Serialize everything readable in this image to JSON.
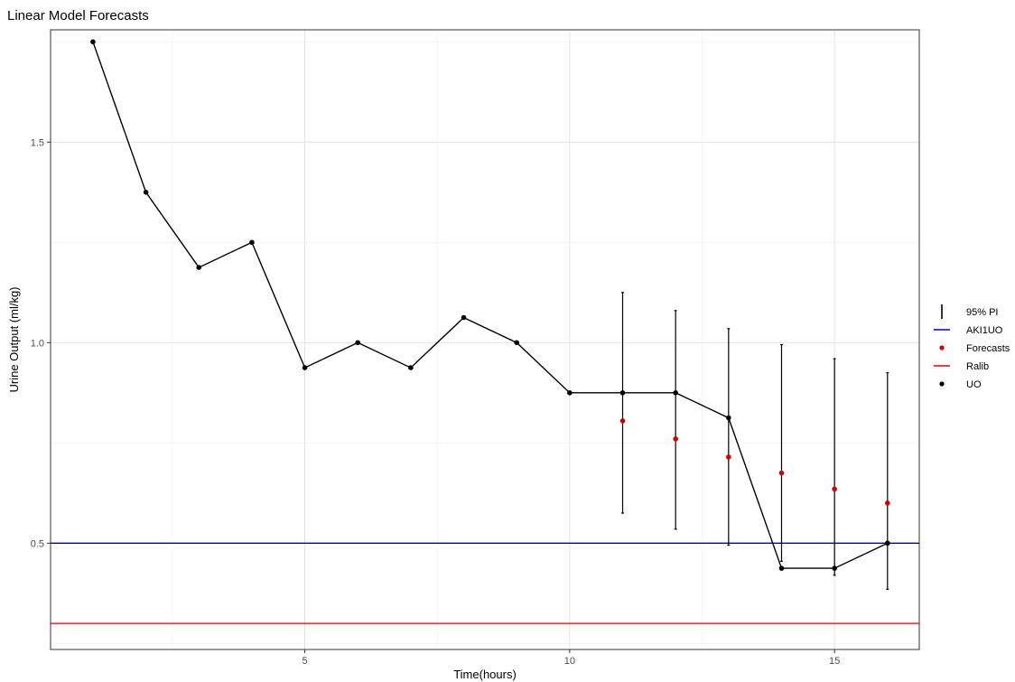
{
  "chart_data": {
    "type": "line",
    "title": "Linear Model Forecasts",
    "xlabel": "Time(hours)",
    "ylabel": "Urine Output (ml/kg)",
    "xlim": [
      0.2,
      16.6
    ],
    "ylim": [
      0.235,
      1.78
    ],
    "x_ticks": [
      5,
      10,
      15
    ],
    "y_ticks": [
      0.5,
      1.0,
      1.5
    ],
    "x_tick_labels": [
      "5",
      "10",
      "15"
    ],
    "y_tick_labels": [
      "0.5",
      "1.0",
      "1.5"
    ],
    "grid": true,
    "legend_position": "right",
    "legend": [
      "95% PI",
      "AKI1UO",
      "Forecasts",
      "Ralib",
      "UO"
    ],
    "series": [
      {
        "name": "UO",
        "color": "#000000",
        "x": [
          1,
          2,
          3,
          4,
          5,
          6,
          7,
          8,
          9,
          10,
          11,
          12,
          13,
          14,
          15,
          16
        ],
        "y": [
          1.75,
          1.375,
          1.1875,
          1.25,
          0.9375,
          1.0,
          0.9375,
          1.0625,
          1.0,
          0.875,
          0.875,
          0.875,
          0.8125,
          0.4375,
          0.4375,
          0.5
        ]
      },
      {
        "name": "Forecasts",
        "color": "#cc0000",
        "x": [
          11,
          12,
          13,
          14,
          15,
          16
        ],
        "y": [
          0.805,
          0.76,
          0.715,
          0.675,
          0.635,
          0.6
        ]
      }
    ],
    "intervals": {
      "name": "95% PI",
      "x": [
        11,
        12,
        13,
        14,
        15,
        16
      ],
      "lower": [
        0.575,
        0.535,
        0.495,
        0.455,
        0.42,
        0.385
      ],
      "upper": [
        1.125,
        1.08,
        1.035,
        0.995,
        0.96,
        0.925
      ]
    },
    "hlines": [
      {
        "name": "AKI1UO",
        "y": 0.5,
        "color": "#0000cc"
      },
      {
        "name": "Ralib",
        "y": 0.3,
        "color": "#dd0000"
      }
    ]
  }
}
